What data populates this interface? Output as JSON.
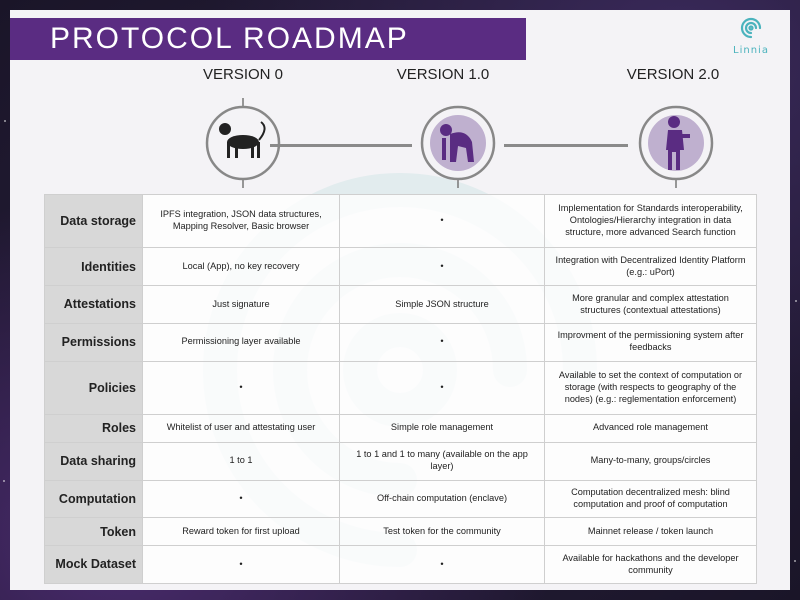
{
  "title": "PROTOCOL ROADMAP",
  "brand": {
    "name": "Linnia",
    "icon": "spiral-logo-icon",
    "color": "#4bb3bd"
  },
  "colors": {
    "title_bar": "#5a2c82",
    "icon_circle": "#5a2c82",
    "row_header": "#d8d8d8"
  },
  "versions": [
    {
      "label": "VERSION 0",
      "icon": "monkey-icon"
    },
    {
      "label": "VERSION 1.0",
      "icon": "crouching-figure-icon"
    },
    {
      "label": "VERSION 2.0",
      "icon": "standing-figure-icon"
    }
  ],
  "rows": [
    {
      "label": "Data storage",
      "cells": [
        "IPFS integration, JSON data structures, Mapping Resolver, Basic browser",
        "•",
        "Implementation for Standards interoperability, Ontologies/Hierarchy integration in data structure, more advanced Search function"
      ]
    },
    {
      "label": "Identities",
      "cells": [
        "Local (App), no key recovery",
        "•",
        "Integration with Decentralized Identity Platform (e.g.: uPort)"
      ]
    },
    {
      "label": "Attestations",
      "cells": [
        "Just signature",
        "Simple JSON structure",
        "More granular and complex attestation structures (contextual attestations)"
      ]
    },
    {
      "label": "Permissions",
      "cells": [
        "Permissioning layer available",
        "•",
        "Improvment of the permissioning system after feedbacks"
      ]
    },
    {
      "label": "Policies",
      "cells": [
        "•",
        "•",
        "Available to set the context of computation or storage (with respects to geography of the nodes) (e.g.: reglementation enforcement)"
      ]
    },
    {
      "label": "Roles",
      "cells": [
        "Whitelist of user and attestating user",
        "Simple role management",
        "Advanced role management"
      ]
    },
    {
      "label": "Data sharing",
      "cells": [
        "1 to 1",
        "1 to 1 and 1 to many (available on the app layer)",
        "Many-to-many, groups/circles"
      ]
    },
    {
      "label": "Computation",
      "cells": [
        "•",
        "Off-chain computation (enclave)",
        "Computation decentralized mesh: blind computation and proof of computation"
      ]
    },
    {
      "label": "Token",
      "cells": [
        "Reward token for first upload",
        "Test token for the community",
        "Mainnet release / token launch"
      ]
    },
    {
      "label": "Mock Dataset",
      "cells": [
        "•",
        "•",
        "Available for hackathons and the developer community"
      ]
    }
  ]
}
